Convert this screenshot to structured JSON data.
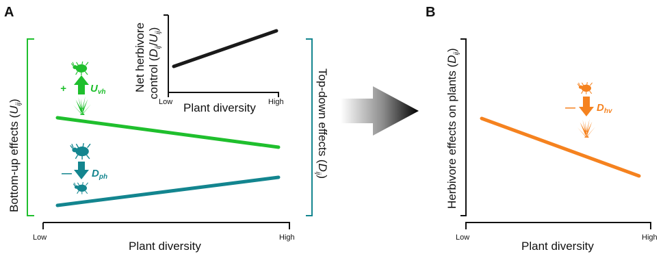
{
  "panel_a": {
    "letter": "A",
    "x_axis": {
      "label": "Plant diversity",
      "low": "Low",
      "high": "High"
    },
    "left_bracket": {
      "label_main": "Bottom-up effects (",
      "label_var": "U",
      "label_sub": "ij",
      "label_end": ")"
    },
    "right_bracket": {
      "label_main": "Top-down effects (",
      "label_var": "D",
      "label_sub": "ij",
      "label_end": ")"
    },
    "inset": {
      "ylabel_line1": "Net herbivore",
      "ylabel_line2_main": "control (",
      "ylabel_line2_var": "D",
      "ylabel_line2_sub": "ij",
      "ylabel_line2_mid": "/",
      "ylabel_line2_var2": "U",
      "ylabel_line2_sub2": "ij",
      "ylabel_line2_end": ")",
      "xlabel": "Plant diversity",
      "low": "Low",
      "high": "High"
    },
    "green_annotation": {
      "sign": "+",
      "var": "U",
      "sub": "vh"
    },
    "teal_annotation": {
      "sign": "—",
      "var": "D",
      "sub": "ph"
    }
  },
  "panel_b": {
    "letter": "B",
    "x_axis": {
      "label": "Plant diversity",
      "low": "Low",
      "high": "High"
    },
    "y_label_main": "Herbivore effects on plants (",
    "y_label_var": "D",
    "y_label_sub": "ij",
    "y_label_end": ")",
    "orange_annotation": {
      "sign": "—",
      "var": "D",
      "sub": "hv"
    }
  },
  "colors": {
    "green": "#1fbf2d",
    "teal": "#13858f",
    "orange": "#f5821f",
    "black": "#111111"
  },
  "icons": [
    "beetle-icon",
    "grass-icon",
    "predator-beetle-icon",
    "transition-arrow-icon"
  ]
}
